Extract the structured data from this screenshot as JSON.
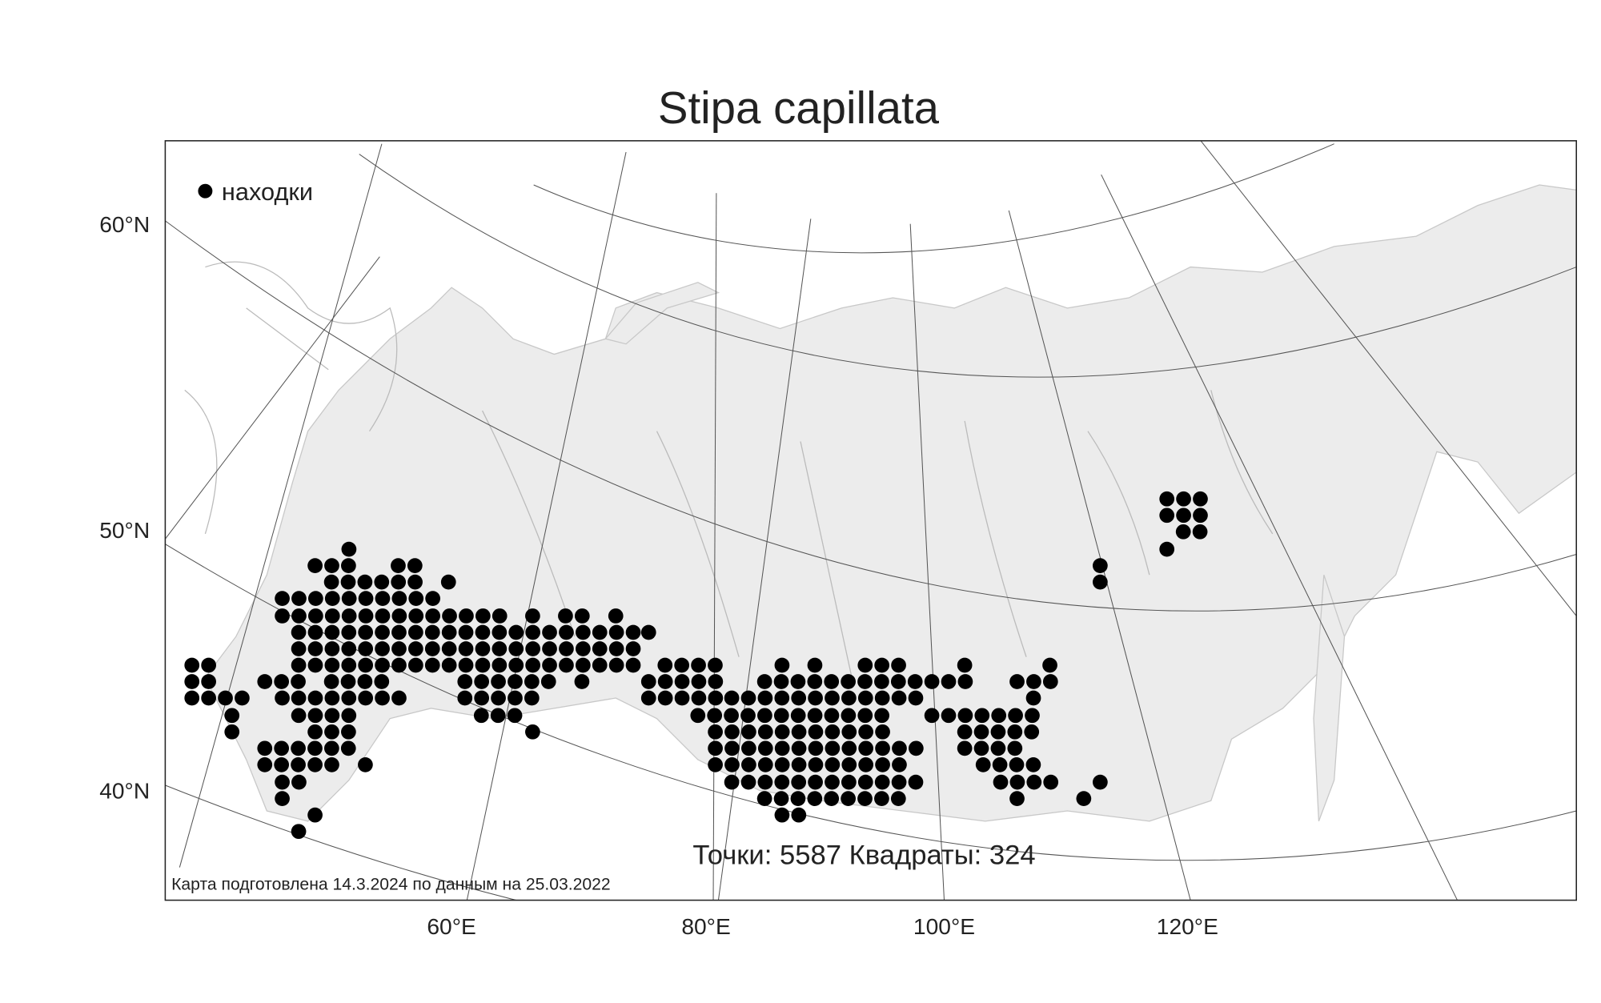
{
  "title": "Stipa capillata",
  "legend": "находки",
  "lat_labels": [
    "60°N",
    "50°N",
    "40°N"
  ],
  "lon_labels": [
    "60°E",
    "80°E",
    "100°E",
    "120°E"
  ],
  "stats": "Точки: 5587 Квадраты: 324",
  "footer": "Карта подготовлена 14.3.2024 по данным на 25.03.2022"
}
